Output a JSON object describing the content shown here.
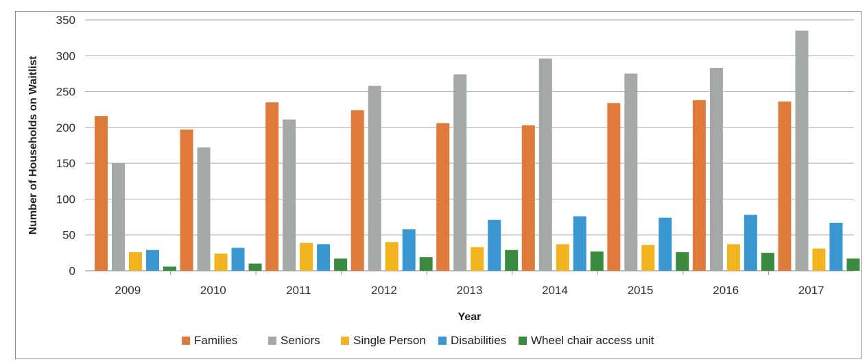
{
  "figure_caption": "",
  "chart_data": {
    "type": "bar",
    "title": "",
    "xlabel": "Year",
    "ylabel": "Number of Households on Waitlist",
    "ylim": [
      0,
      350
    ],
    "yticks": [
      0,
      50,
      100,
      150,
      200,
      250,
      300,
      350
    ],
    "grid": true,
    "legend_position": "bottom",
    "categories": [
      "2009",
      "2010",
      "2011",
      "2012",
      "2013",
      "2014",
      "2015",
      "2016",
      "2017"
    ],
    "series": [
      {
        "name": "Families",
        "color": "#e07a3a",
        "values": [
          216,
          197,
          235,
          224,
          206,
          203,
          234,
          238,
          236
        ]
      },
      {
        "name": "Seniors",
        "color": "#a4a9a6",
        "values": [
          150,
          172,
          211,
          258,
          274,
          296,
          275,
          283,
          335
        ]
      },
      {
        "name": "Single Person",
        "color": "#f2b41e",
        "values": [
          26,
          24,
          39,
          40,
          33,
          37,
          36,
          37,
          31
        ]
      },
      {
        "name": "Disabilities",
        "color": "#3a97d2",
        "values": [
          29,
          32,
          37,
          58,
          71,
          76,
          74,
          78,
          67
        ]
      },
      {
        "name": "Wheel chair access unit",
        "color": "#3a8a3f",
        "values": [
          6,
          10,
          17,
          19,
          29,
          27,
          26,
          25,
          17
        ]
      }
    ]
  }
}
